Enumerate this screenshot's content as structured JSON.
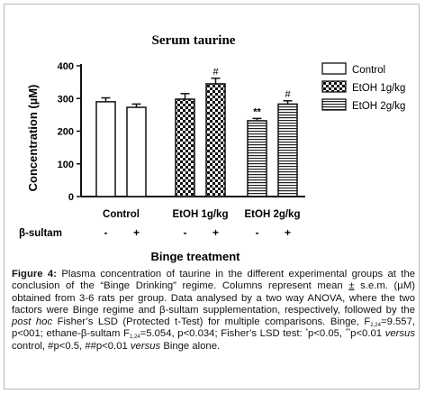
{
  "chart_data": {
    "type": "bar",
    "title": "Serum taurine",
    "ylabel": "Concentration (µM)",
    "xlabel": "Binge treatment",
    "ylim": [
      0,
      400
    ],
    "yticks": [
      0,
      100,
      200,
      300,
      400
    ],
    "groups": [
      "Control",
      "EtOH 1g/kg",
      "EtOH 2g/kg"
    ],
    "row_label": "β-sultam",
    "row_values": [
      "-",
      "+",
      "-",
      "+",
      "-",
      "+"
    ],
    "series": [
      {
        "name": "Control",
        "group": 0,
        "pattern": "white",
        "values": [
          290,
          273
        ],
        "errors": [
          12,
          10
        ],
        "annotations": [
          "",
          ""
        ]
      },
      {
        "name": "EtOH 1g/kg",
        "group": 1,
        "pattern": "checker",
        "values": [
          298,
          345
        ],
        "errors": [
          17,
          17
        ],
        "annotations": [
          "",
          "#"
        ]
      },
      {
        "name": "EtOH 2g/kg",
        "group": 2,
        "pattern": "hlines",
        "values": [
          232,
          283
        ],
        "errors": [
          7,
          10
        ],
        "annotations": [
          "**",
          "#"
        ]
      }
    ],
    "legend": [
      "Control",
      "EtOH 1g/kg",
      "EtOH 2g/kg"
    ],
    "legend_position": "top-right"
  },
  "caption": {
    "label": "Figure 4:",
    "intro": " Plasma concentration of taurine in the different experimental groups at the conclusion of the “Binge Drinking” regime. Columns represent mean ",
    "pm": "±",
    "part2": " s.e.m. (µM) obtained from 3-6 rats per group. Data analysed by a two way ANOVA, where the two factors were Binge regime and β-sultam supplementation, respectively, followed by the ",
    "posthoc": "post hoc",
    "part3": " Fisher’s LSD (Protected t-Test) for multiple comparisons. Binge, F",
    "sub1": "2,24",
    "part4": "=9.557, p<001; ethane-β-sultam F",
    "sub2": "1,24",
    "part5": "=5.054, p<0.034; Fisher’s LSD test: ",
    "star1": "*",
    "part6": "p<0.05, ",
    "star2": "**",
    "part7": "p<0.01 ",
    "versus1": "versus",
    "part8": " control, #p<0.5, ##p<0.01 ",
    "versus2": "versus",
    "part9": " Binge alone."
  }
}
